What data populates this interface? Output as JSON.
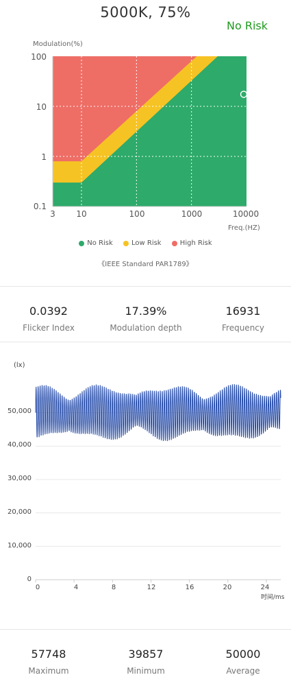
{
  "header": {
    "title": "5000K, 75%",
    "risk_status": "No Risk"
  },
  "risk_chart": {
    "ylabel": "Modulation(%)",
    "xlabel": "Freq.(HZ)",
    "y_ticks": [
      "100",
      "10",
      "1",
      "0.1"
    ],
    "x_ticks": [
      "3",
      "10",
      "100",
      "1000",
      "10000"
    ],
    "legend": [
      {
        "label": "No Risk",
        "color": "#2eaa6a"
      },
      {
        "label": "Low Risk",
        "color": "#f6c324"
      },
      {
        "label": "High Risk",
        "color": "#ee6e66"
      }
    ],
    "standard": "《IEEE Standard PAR1789》",
    "marker": {
      "freq": 16931,
      "modulation": 17.39
    }
  },
  "metrics": [
    {
      "value": "0.0392",
      "label": "Flicker Index"
    },
    {
      "value": "17.39%",
      "label": "Modulation depth"
    },
    {
      "value": "16931",
      "label": "Frequency"
    }
  ],
  "chart_data": {
    "type": "line",
    "ylabel": "(lx)",
    "xlabel": "时间/ms",
    "y_ticks": [
      "50,000",
      "40,000",
      "30,000",
      "20,000",
      "10,000",
      "0"
    ],
    "x_ticks": [
      "0",
      "4",
      "8",
      "12",
      "16",
      "20",
      "24"
    ],
    "ylim": [
      0,
      60000
    ],
    "xlim": [
      0,
      25.5
    ],
    "series": [
      {
        "color": "#1f46a6",
        "min": 39857,
        "max": 57748,
        "mean": 50000
      }
    ]
  },
  "summary": [
    {
      "value": "57748",
      "label": "Maximum"
    },
    {
      "value": "39857",
      "label": "Minimum"
    },
    {
      "value": "50000",
      "label": "Average"
    }
  ]
}
